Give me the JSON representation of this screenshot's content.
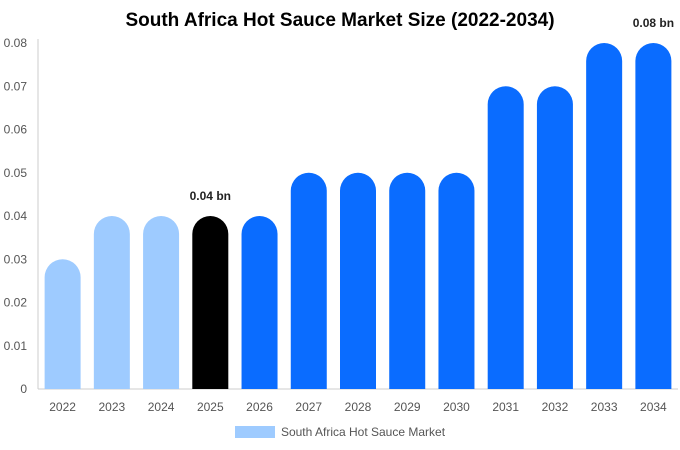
{
  "chart_data": {
    "type": "bar",
    "title": "South Africa Hot Sauce Market Size (2022-2034)",
    "categories": [
      "2022",
      "2023",
      "2024",
      "2025",
      "2026",
      "2027",
      "2028",
      "2029",
      "2030",
      "2031",
      "2032",
      "2033",
      "2034"
    ],
    "series": [
      {
        "name": "South Africa Hot Sauce Market",
        "values": [
          0.03,
          0.04,
          0.04,
          0.04,
          0.04,
          0.05,
          0.05,
          0.05,
          0.05,
          0.07,
          0.07,
          0.08,
          0.08
        ]
      }
    ],
    "bar_colors": [
      "#9ecbff",
      "#9ecbff",
      "#9ecbff",
      "#000000",
      "#0a6cff",
      "#0a6cff",
      "#0a6cff",
      "#0a6cff",
      "#0a6cff",
      "#0a6cff",
      "#0a6cff",
      "#0a6cff",
      "#0a6cff"
    ],
    "y_ticks": [
      "0",
      "0.01",
      "0.02",
      "0.03",
      "0.04",
      "0.05",
      "0.06",
      "0.07",
      "0.08"
    ],
    "ylim": [
      0,
      0.08
    ],
    "data_labels": [
      {
        "category": "2025",
        "text": "0.04 bn"
      },
      {
        "category": "2034",
        "text": "0.08 bn"
      }
    ],
    "legend": {
      "label": "South Africa Hot Sauce Market",
      "color": "#9ecbff",
      "placement": "bottom"
    },
    "grid": false
  }
}
